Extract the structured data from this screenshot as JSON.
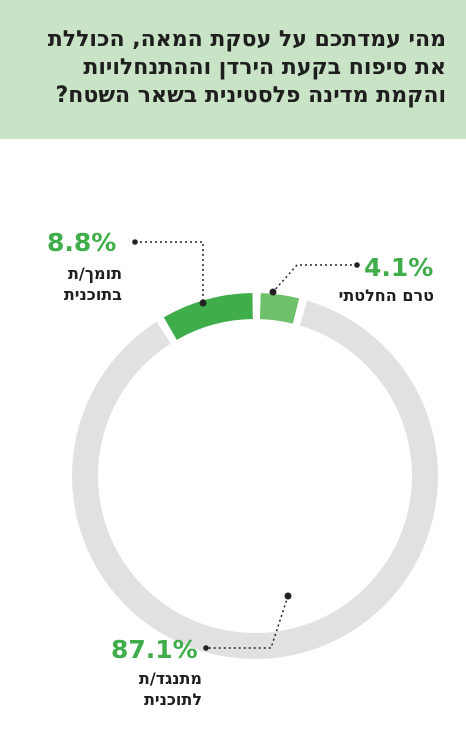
{
  "title_lines": [
    "מהי עמדתכם על עסקת המאה, הכוללת",
    "את סיפוח בקעת הירדן וההתנחלויות",
    "והקמת מדינה פלסטינית בשאר השטח?"
  ],
  "colors": {
    "header_bg": "#c8e3c5",
    "supporter": "#3fae4a",
    "undecided": "#6fc06a",
    "opponent": "#e1e1e1",
    "percent_text": "#3fae4a"
  },
  "chart_data": {
    "type": "pie",
    "title": "מהי עמדתכם על עסקת המאה, הכוללת את סיפוח בקעת הירדן וההתנחלויות והקמת מדינה פלסטינית בשאר השטח?",
    "slices": [
      {
        "percent_label": "8.8%",
        "value": 8.8,
        "label_lines": [
          "תומך/ת",
          "בתוכנית"
        ],
        "color": "#3fae4a"
      },
      {
        "percent_label": "4.1%",
        "value": 4.1,
        "label_lines": [
          "טרם החלטתי"
        ],
        "color": "#6fc06a"
      },
      {
        "percent_label": "87.1%",
        "value": 87.1,
        "label_lines": [
          "מתנגד/ת",
          "לתוכנית"
        ],
        "color": "#e1e1e1"
      }
    ]
  }
}
